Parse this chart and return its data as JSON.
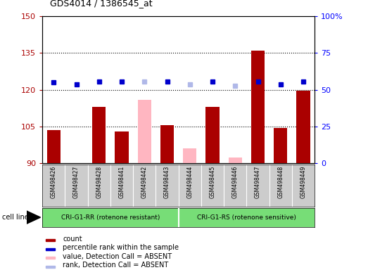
{
  "title": "GDS4014 / 1386545_at",
  "samples": [
    "GSM498426",
    "GSM498427",
    "GSM498428",
    "GSM498441",
    "GSM498442",
    "GSM498443",
    "GSM498444",
    "GSM498445",
    "GSM498446",
    "GSM498447",
    "GSM498448",
    "GSM498449"
  ],
  "groups": [
    "CRI-G1-RR (rotenone resistant)",
    "CRI-G1-RS (rotenone sensitive)"
  ],
  "group_sizes": [
    6,
    6
  ],
  "bar_values": [
    103.5,
    89.5,
    113.0,
    103.0,
    null,
    105.5,
    null,
    113.0,
    null,
    136.0,
    104.5,
    119.5
  ],
  "absent_bar_values": [
    null,
    null,
    null,
    null,
    116.0,
    null,
    96.0,
    null,
    92.5,
    null,
    null,
    null
  ],
  "rank_right_vals": [
    55.0,
    53.5,
    55.5,
    55.5,
    null,
    55.5,
    null,
    55.5,
    null,
    55.5,
    53.5,
    55.5
  ],
  "absent_rank_right_vals": [
    null,
    null,
    null,
    null,
    55.5,
    null,
    53.5,
    null,
    52.5,
    null,
    null,
    null
  ],
  "ylim_left": [
    90,
    150
  ],
  "ylim_right": [
    0,
    100
  ],
  "yticks_left": [
    90,
    105,
    120,
    135,
    150
  ],
  "yticks_right": [
    0,
    25,
    50,
    75,
    100
  ],
  "bar_width": 0.6,
  "absent_bar_color": "#ffb6c1",
  "absent_rank_color": "#b0b8e8",
  "rank_color": "#0000cc",
  "count_color": "#aa0000",
  "green_color": "#77dd77",
  "gray_color": "#cccccc",
  "legend_items": [
    "count",
    "percentile rank within the sample",
    "value, Detection Call = ABSENT",
    "rank, Detection Call = ABSENT"
  ],
  "legend_colors": [
    "#aa0000",
    "#0000cc",
    "#ffb6c1",
    "#b0b8e8"
  ]
}
